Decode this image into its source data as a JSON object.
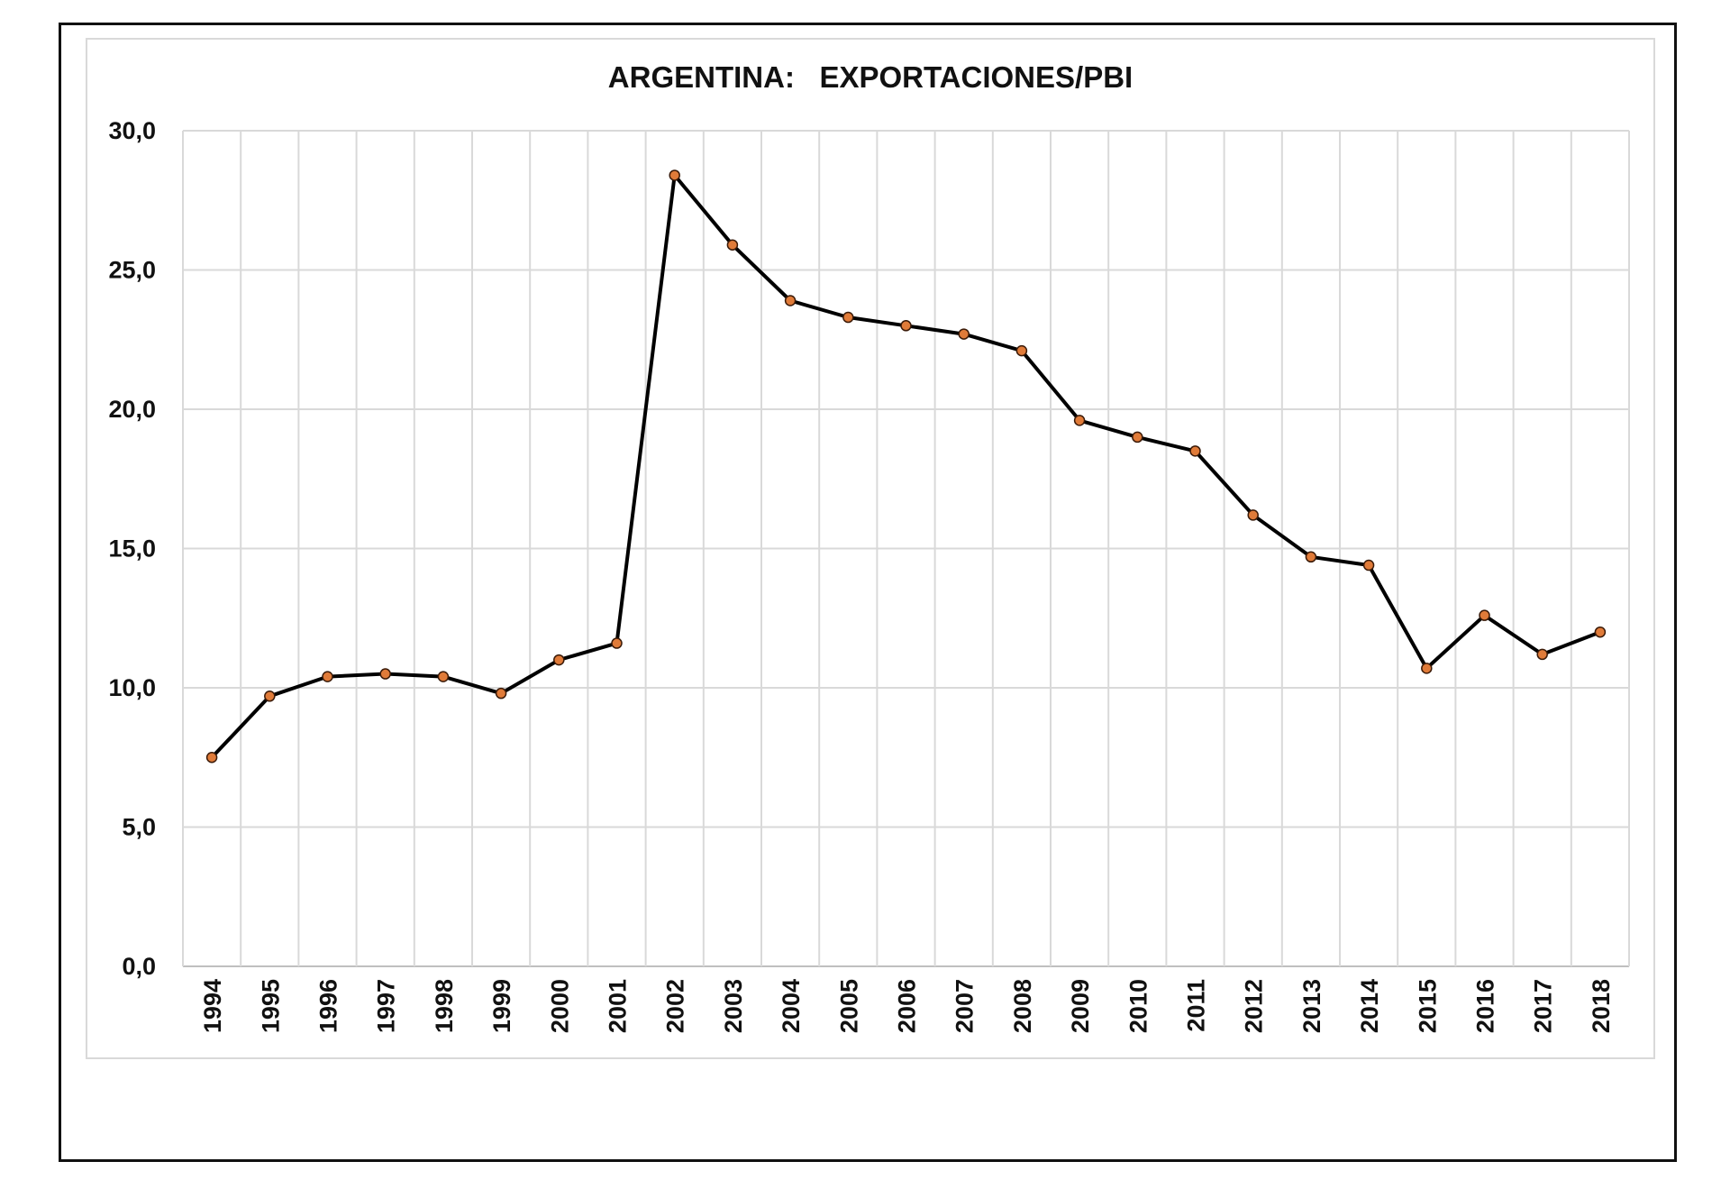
{
  "chart_data": {
    "type": "line",
    "title": "ARGENTINA:   EXPORTACIONES/PBI",
    "xlabel": "",
    "ylabel": "",
    "ylim": [
      0,
      30
    ],
    "y_ticks": [
      "0,0",
      "5,0",
      "10,0",
      "15,0",
      "20,0",
      "25,0",
      "30,0"
    ],
    "grid": true,
    "legend": "none",
    "categories": [
      "1994",
      "1995",
      "1996",
      "1997",
      "1998",
      "1999",
      "2000",
      "2001",
      "2002",
      "2003",
      "2004",
      "2005",
      "2006",
      "2007",
      "2008",
      "2009",
      "2010",
      "2011",
      "2012",
      "2013",
      "2014",
      "2015",
      "2016",
      "2017",
      "2018"
    ],
    "series": [
      {
        "values": [
          7.5,
          9.7,
          10.4,
          10.5,
          10.4,
          9.8,
          11.0,
          11.6,
          28.4,
          25.9,
          23.9,
          23.3,
          23.0,
          22.7,
          22.1,
          19.6,
          19.0,
          18.5,
          16.2,
          14.7,
          14.4,
          10.7,
          12.6,
          11.2,
          12.0
        ],
        "line_color": "#000000",
        "marker_color": "#e07b39"
      }
    ]
  }
}
